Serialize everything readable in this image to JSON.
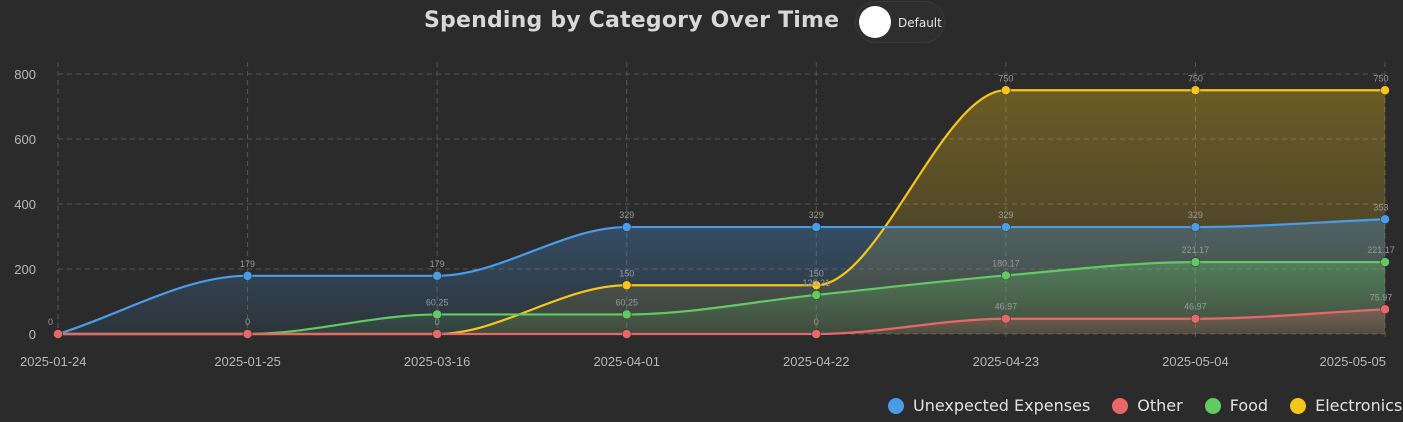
{
  "header": {
    "title": "Spending by Category Over Time",
    "toggle_label": "Default"
  },
  "chart_data": {
    "type": "area",
    "title": "Spending by Category Over Time",
    "categories": [
      "2025-01-24",
      "2025-01-25",
      "2025-03-16",
      "2025-04-01",
      "2025-04-22",
      "2025-04-23",
      "2025-05-04",
      "2025-05-05"
    ],
    "ylim": [
      0,
      800
    ],
    "yticks": [
      0,
      200,
      400,
      600,
      800
    ],
    "grid": true,
    "legend_position": "bottom-right",
    "series": [
      {
        "name": "Unexpected Expenses",
        "color": "#4a9be8",
        "values": [
          0,
          179,
          179,
          329,
          329,
          329,
          329,
          353
        ],
        "labels": [
          "0",
          "179",
          "179",
          "329",
          "329",
          "329",
          "329",
          "353"
        ]
      },
      {
        "name": "Other",
        "color": "#e8686a",
        "values": [
          0,
          0,
          0,
          0,
          0,
          46.97,
          46.97,
          75.97
        ],
        "labels": [
          "",
          "",
          "",
          "",
          "0",
          "46.97",
          "46.97",
          "75.97"
        ]
      },
      {
        "name": "Food",
        "color": "#63c964",
        "values": [
          0,
          0,
          60.25,
          60.25,
          120.21,
          180.17,
          221.17,
          221.17
        ],
        "labels": [
          "",
          "",
          "60.25",
          "60.25",
          "120.21",
          "180.17",
          "221.17",
          "221.17"
        ]
      },
      {
        "name": "Electronics",
        "color": "#f5c518",
        "values": [
          0,
          0,
          0,
          150,
          150,
          750,
          750,
          750
        ],
        "labels": [
          "",
          "0",
          "0",
          "150",
          "150",
          "750",
          "750",
          "750"
        ]
      }
    ]
  }
}
